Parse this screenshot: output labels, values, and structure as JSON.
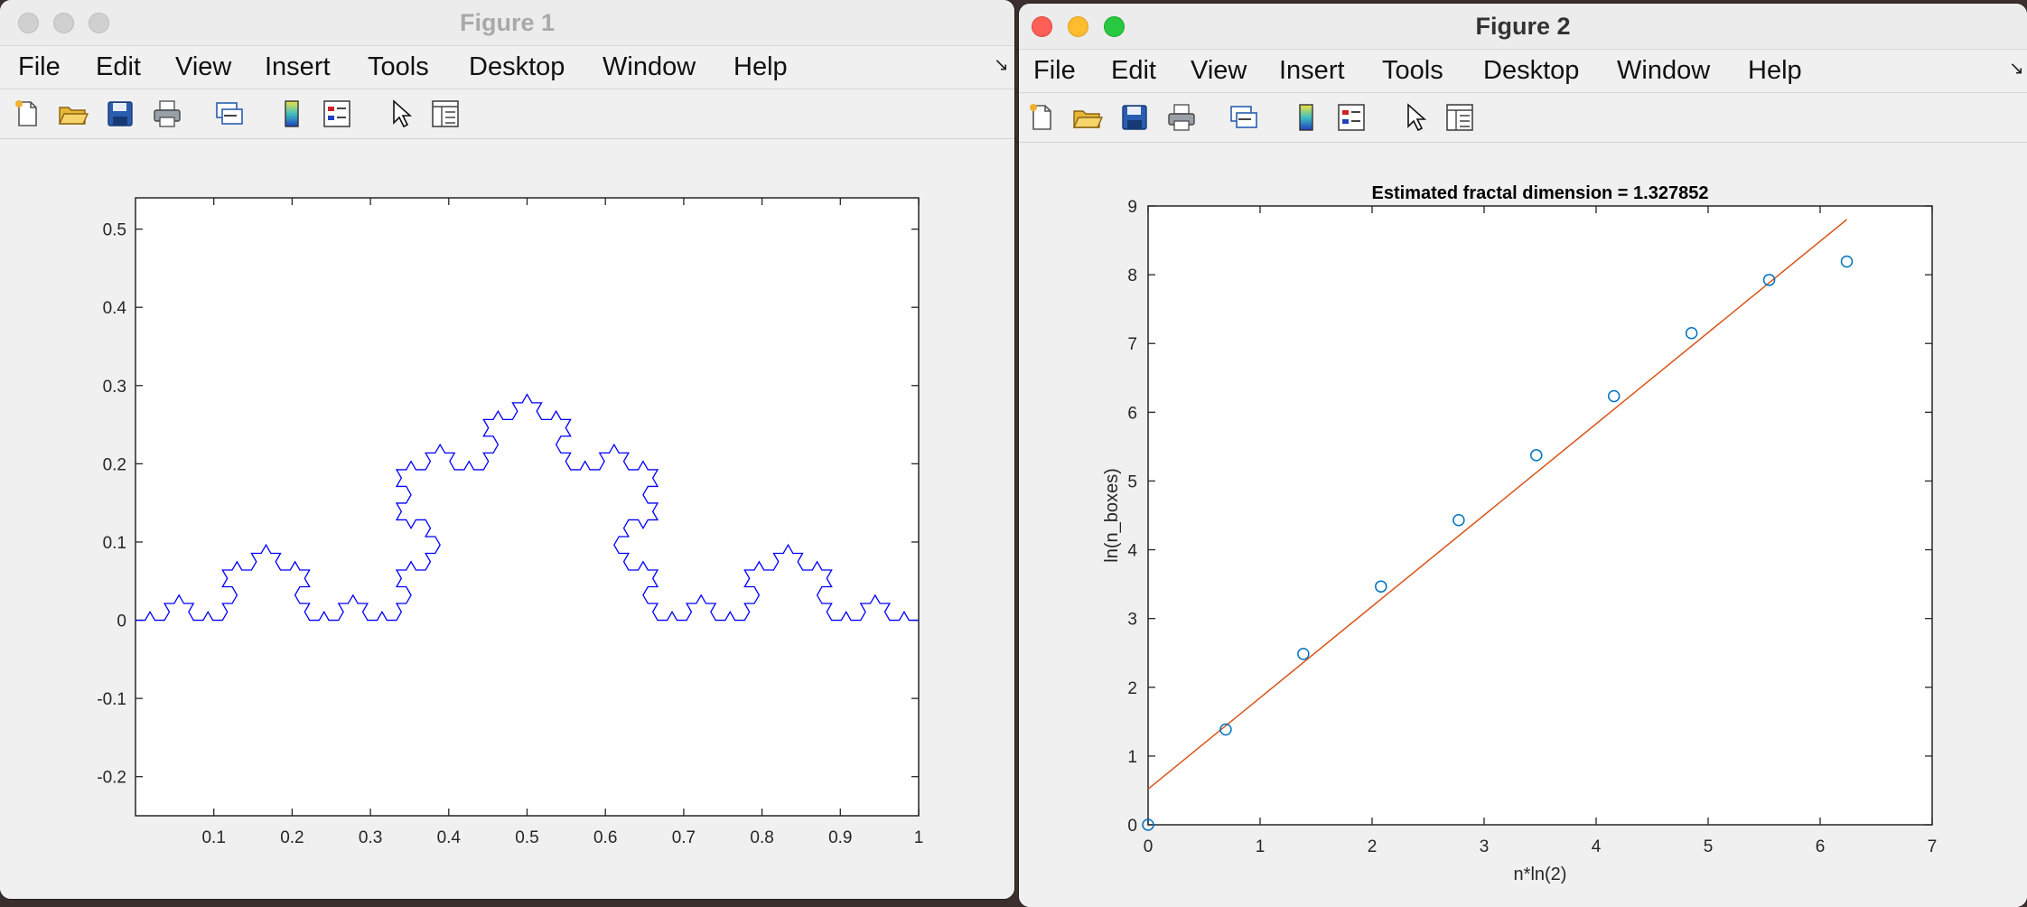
{
  "figure1": {
    "title": "Figure 1",
    "menu": [
      "File",
      "Edit",
      "View",
      "Insert",
      "Tools",
      "Desktop",
      "Window",
      "Help"
    ],
    "toolbar_icons": [
      "new-figure-icon",
      "open-file-icon",
      "save-icon",
      "print-icon",
      "link-plot-icon",
      "colorbar-icon",
      "legend-icon",
      "pointer-icon",
      "property-inspector-icon"
    ],
    "plot": {
      "type": "line",
      "xlim": [
        0,
        1
      ],
      "ylim": [
        -0.25,
        0.54
      ],
      "xticks": [
        "0.1",
        "0.2",
        "0.3",
        "0.4",
        "0.5",
        "0.6",
        "0.7",
        "0.8",
        "0.9",
        "1"
      ],
      "yticks": [
        "-0.2",
        "-0.1",
        "0",
        "0.1",
        "0.2",
        "0.3",
        "0.4",
        "0.5"
      ],
      "line_color": "#0000ff",
      "series": "Koch curve (iteration 4) from (0,0) to (1,0)"
    }
  },
  "figure2": {
    "title": "Figure 2",
    "menu": [
      "File",
      "Edit",
      "View",
      "Insert",
      "Tools",
      "Desktop",
      "Window",
      "Help"
    ],
    "toolbar_icons": [
      "new-figure-icon",
      "open-file-icon",
      "save-icon",
      "print-icon",
      "link-plot-icon",
      "colorbar-icon",
      "legend-icon",
      "pointer-icon",
      "property-inspector-icon"
    ]
  },
  "chart_data": [
    {
      "type": "line",
      "title": "",
      "xlabel": "",
      "ylabel": "",
      "xlim": [
        0,
        1
      ],
      "ylim": [
        -0.25,
        0.54
      ],
      "description_source": "Koch curve polyline, 4 iterations",
      "color": "#0000ff"
    },
    {
      "type": "scatter",
      "title": "Estimated fractal dimension = 1.327852",
      "xlabel": "n*ln(2)",
      "ylabel": "ln(n_boxes)",
      "xlim": [
        0,
        7
      ],
      "ylim": [
        0,
        9
      ],
      "xticks": [
        "0",
        "1",
        "2",
        "3",
        "4",
        "5",
        "6",
        "7"
      ],
      "yticks": [
        "0",
        "1",
        "2",
        "3",
        "4",
        "5",
        "6",
        "7",
        "8",
        "9"
      ],
      "points": {
        "x": [
          0,
          0.693,
          1.386,
          2.079,
          2.773,
          3.466,
          4.159,
          4.852,
          5.545,
          6.238
        ],
        "y": [
          0,
          1.386,
          2.485,
          3.466,
          4.431,
          5.375,
          6.234,
          7.151,
          7.925,
          8.192
        ]
      },
      "fit_line": {
        "slope": 1.327852,
        "intercept": 0.52,
        "x_range": [
          0,
          6.238
        ]
      },
      "marker_color": "#0072bd",
      "line_color": "#d95319"
    }
  ]
}
